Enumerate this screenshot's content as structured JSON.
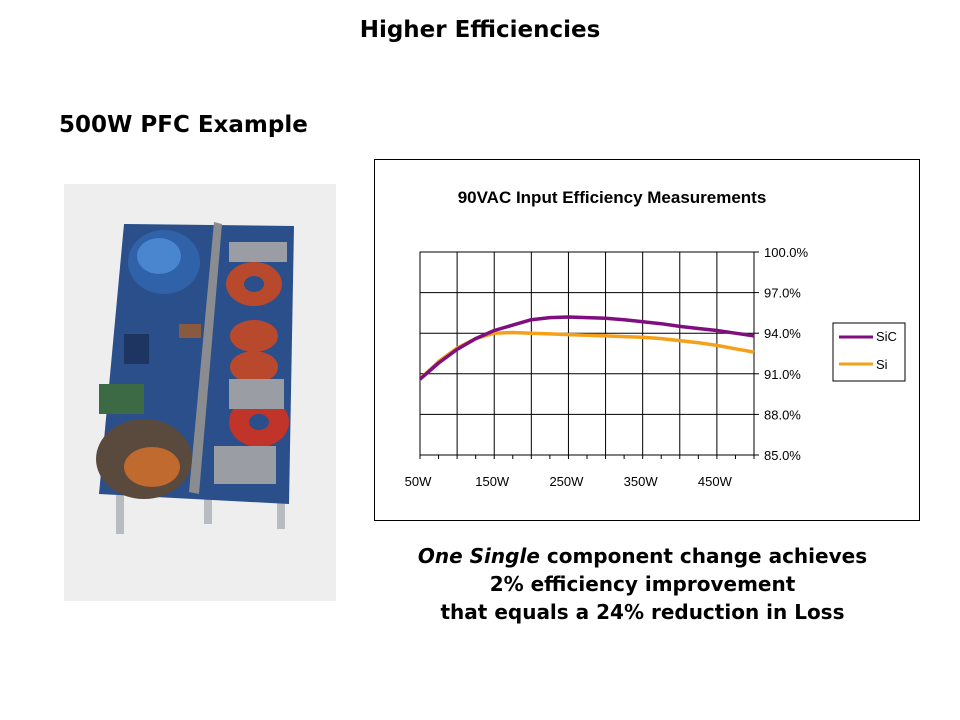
{
  "slide": {
    "title": "Higher Efficiencies",
    "subtitle": "500W PFC Example",
    "caption_em": "One Single",
    "caption_rest": " component change achieves",
    "caption_line2": "2% efficiency improvement",
    "caption_line3": "that equals a 24% reduction in Loss"
  },
  "chart_data": {
    "type": "line",
    "title": "90VAC Input Efficiency Measurements",
    "x_tick_labels": [
      "50W",
      "150W",
      "250W",
      "350W",
      "450W"
    ],
    "y_tick_labels": [
      "100.0%",
      "97.0%",
      "94.0%",
      "91.0%",
      "88.0%",
      "85.0%"
    ],
    "x": [
      50,
      75,
      100,
      125,
      150,
      175,
      200,
      225,
      250,
      275,
      300,
      325,
      350,
      375,
      400,
      425,
      450,
      475,
      500
    ],
    "xlim": [
      50,
      500
    ],
    "ylim": [
      85,
      100
    ],
    "grid": true,
    "y_axis_side": "right",
    "legend_position": "right",
    "series": [
      {
        "name": "SiC",
        "color": "#7f0f7e",
        "values": [
          90.6,
          91.8,
          92.8,
          93.6,
          94.2,
          94.6,
          95.0,
          95.15,
          95.2,
          95.15,
          95.1,
          95.0,
          94.85,
          94.7,
          94.5,
          94.35,
          94.2,
          94.0,
          93.8
        ]
      },
      {
        "name": "Si",
        "color": "#f5a01a",
        "values": [
          90.6,
          91.9,
          92.9,
          93.6,
          94.0,
          94.05,
          94.0,
          93.95,
          93.9,
          93.85,
          93.8,
          93.75,
          93.7,
          93.6,
          93.45,
          93.3,
          93.1,
          92.85,
          92.6
        ]
      }
    ]
  }
}
